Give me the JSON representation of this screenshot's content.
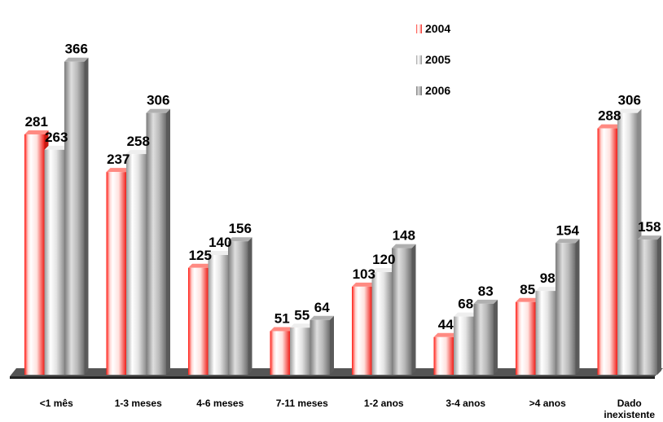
{
  "chart_data": {
    "type": "bar",
    "title": "",
    "xlabel": "",
    "ylabel": "",
    "ylim": [
      0,
      400
    ],
    "grid": false,
    "legend_position": "top-right",
    "categories": [
      "<1 mês",
      "1-3 meses",
      "4-6 meses",
      "7-11 meses",
      "1-2 anos",
      "3-4 anos",
      ">4 anos",
      [
        "Dado",
        "inexistente"
      ]
    ],
    "series": [
      {
        "name": "2004",
        "color": "#e8322c",
        "values": [
          281,
          237,
          125,
          51,
          103,
          44,
          85,
          288
        ]
      },
      {
        "name": "2005",
        "color": "#c8c8c8",
        "values": [
          263,
          258,
          140,
          55,
          120,
          68,
          98,
          306
        ]
      },
      {
        "name": "2006",
        "color": "#9a9a9a",
        "values": [
          366,
          306,
          156,
          64,
          148,
          83,
          154,
          158
        ]
      }
    ]
  }
}
